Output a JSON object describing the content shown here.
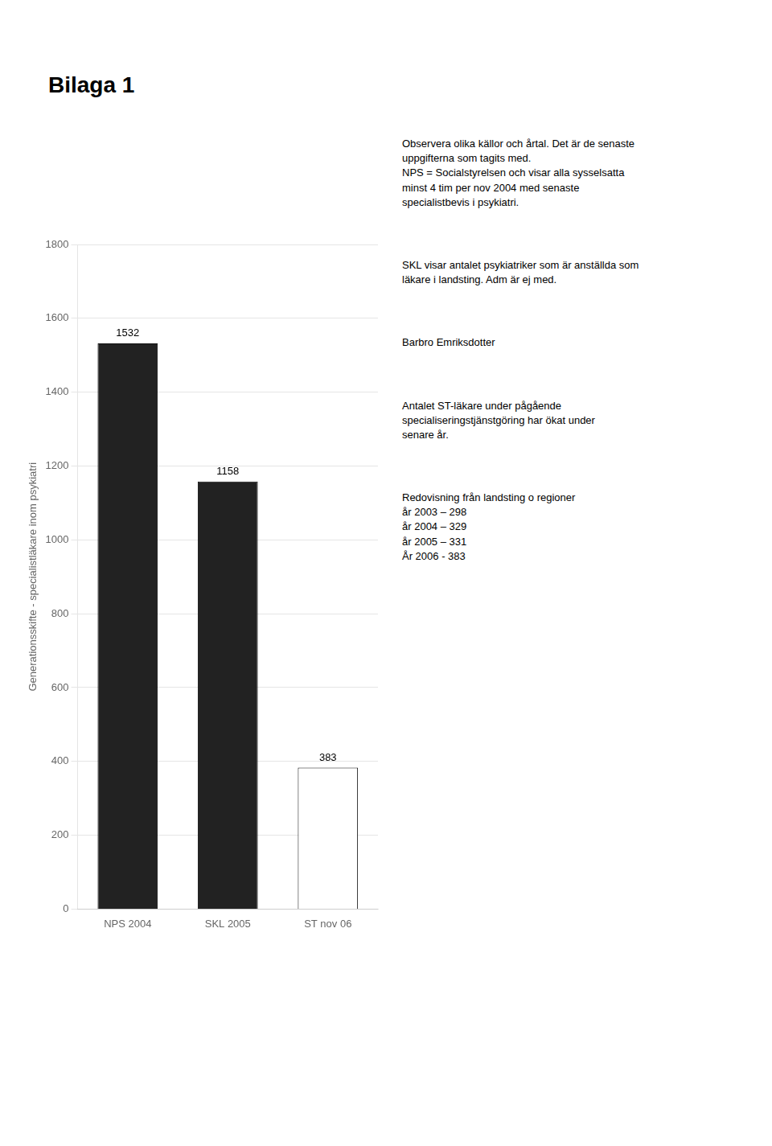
{
  "chart_data": {
    "type": "bar",
    "title": "Bilaga 1",
    "ylabel": "Generationsskifte - specialistläkare inom psykiatri",
    "categories": [
      "NPS 2004",
      "SKL 2005",
      "ST nov 06"
    ],
    "values": [
      1532,
      1158,
      383
    ],
    "colors": [
      "#222222",
      "#222222",
      "#ffffff"
    ],
    "ylim": [
      0,
      1800
    ],
    "yticks": [
      0,
      200,
      400,
      600,
      800,
      1000,
      1200,
      1400,
      1600,
      1800
    ],
    "grid": true,
    "data_labels": true,
    "annotations": [
      "Observera olika källor och årtal. Det är de senaste\nuppgifterna som tagits med.\nNPS = Socialstyrelsen och visar alla sysselsatta\nminst 4 tim per nov 2004 med senaste\nspecialistbevis i psykiatri.",
      "SKL visar antalet psykiatriker som är anställda som\nläkare i landsting. Adm är ej med.",
      "Barbro Emriksdotter",
      "Antalet ST-läkare under pågående\nspecialiseringstjänstgöring har ökat under\nsenare år.",
      "Redovisning från landsting o regioner\når 2003 – 298\når 2004 – 329\når 2005 – 331\nÅr 2006 - 383"
    ]
  }
}
